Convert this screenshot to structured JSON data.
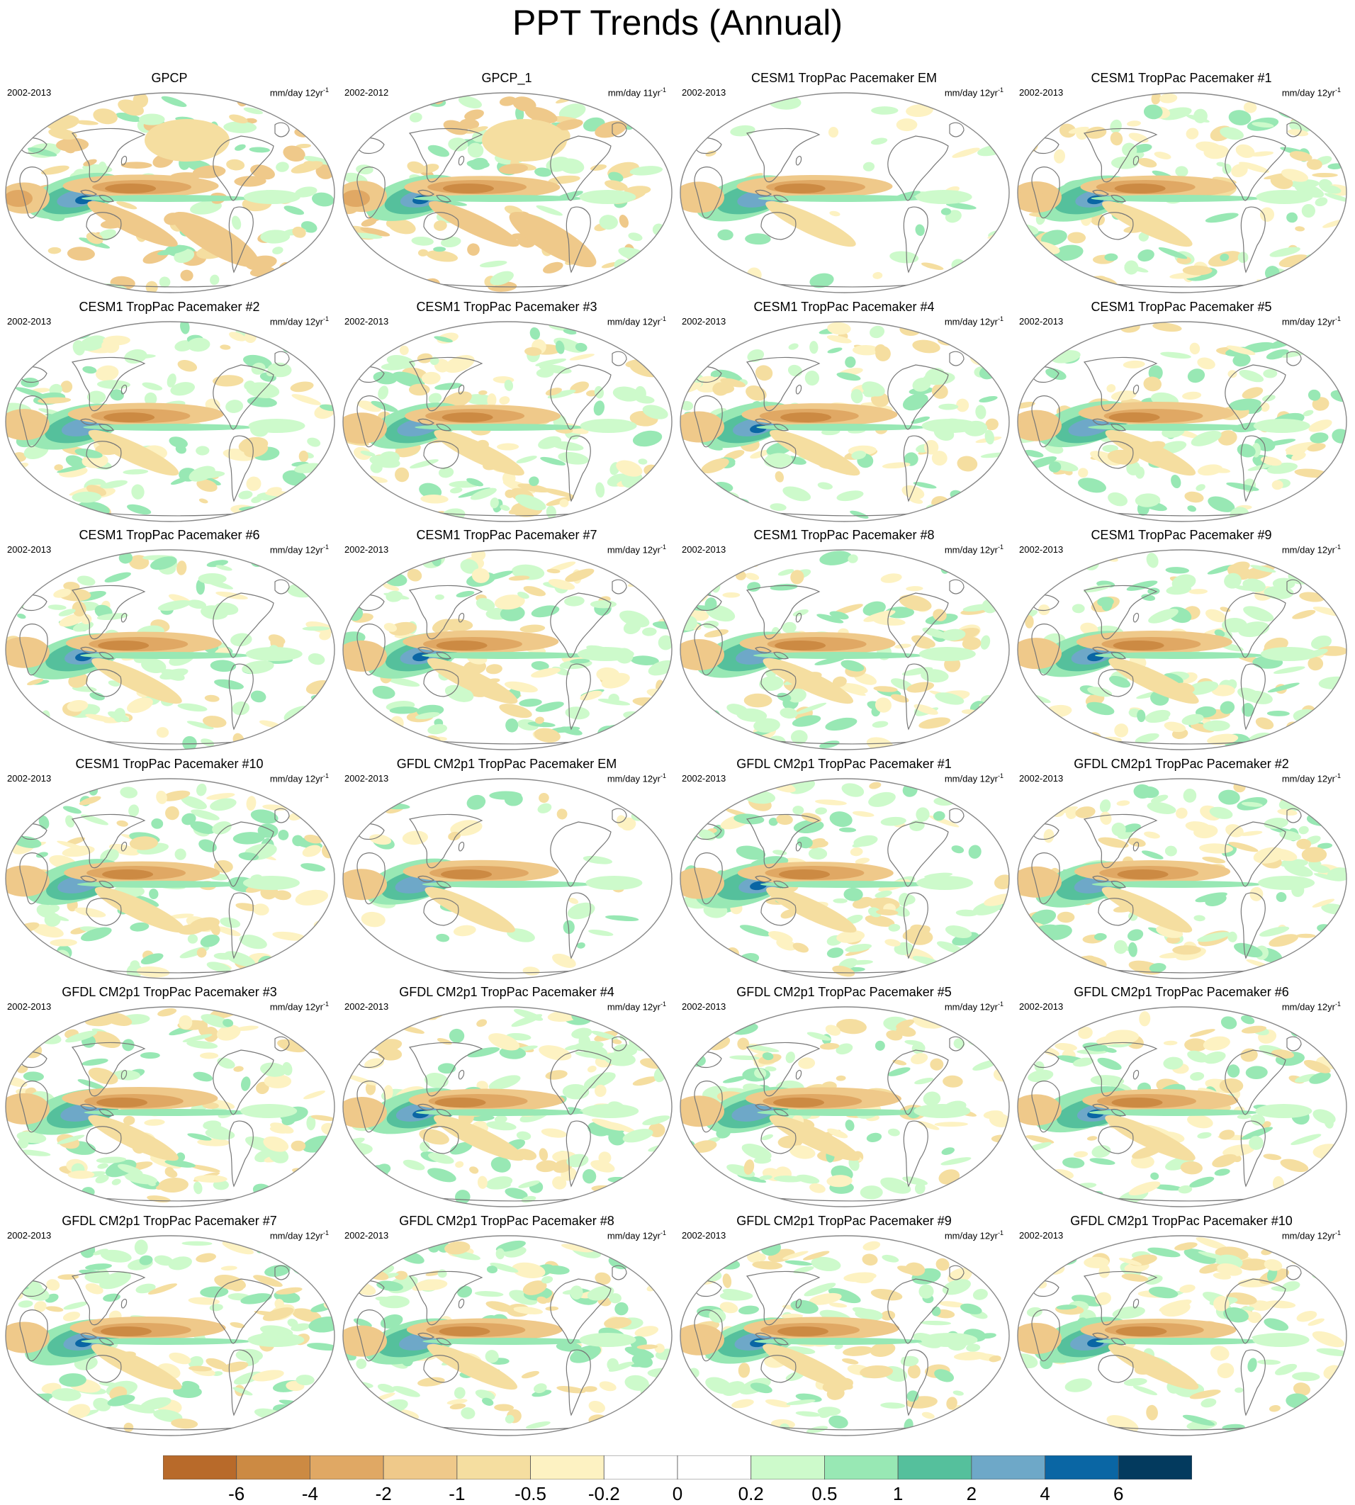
{
  "title": "PPT Trends (Annual)",
  "panels": [
    {
      "title": "GPCP",
      "period": "2002-2013",
      "units": "mm/day 12yr",
      "exp": "-1",
      "style": "obs"
    },
    {
      "title": "GPCP_1",
      "period": "2002-2012",
      "units": "mm/day 11yr",
      "exp": "-1",
      "style": "obs"
    },
    {
      "title": "CESM1 TropPac Pacemaker EM",
      "period": "2002-2013",
      "units": "mm/day 12yr",
      "exp": "-1",
      "style": "cesm-em"
    },
    {
      "title": "CESM1 TropPac Pacemaker #1",
      "period": "2002-2013",
      "units": "mm/day 12yr",
      "exp": "-1",
      "style": "cesm"
    },
    {
      "title": "CESM1 TropPac Pacemaker #2",
      "period": "2002-2013",
      "units": "mm/day 12yr",
      "exp": "-1",
      "style": "cesm"
    },
    {
      "title": "CESM1 TropPac Pacemaker #3",
      "period": "2002-2013",
      "units": "mm/day 12yr",
      "exp": "-1",
      "style": "cesm"
    },
    {
      "title": "CESM1 TropPac Pacemaker #4",
      "period": "2002-2013",
      "units": "mm/day 12yr",
      "exp": "-1",
      "style": "cesm"
    },
    {
      "title": "CESM1 TropPac Pacemaker #5",
      "period": "2002-2013",
      "units": "mm/day 12yr",
      "exp": "-1",
      "style": "cesm"
    },
    {
      "title": "CESM1 TropPac Pacemaker #6",
      "period": "2002-2013",
      "units": "mm/day 12yr",
      "exp": "-1",
      "style": "cesm"
    },
    {
      "title": "CESM1 TropPac Pacemaker #7",
      "period": "2002-2013",
      "units": "mm/day 12yr",
      "exp": "-1",
      "style": "cesm"
    },
    {
      "title": "CESM1 TropPac Pacemaker #8",
      "period": "2002-2013",
      "units": "mm/day 12yr",
      "exp": "-1",
      "style": "cesm"
    },
    {
      "title": "CESM1 TropPac Pacemaker #9",
      "period": "2002-2013",
      "units": "mm/day 12yr",
      "exp": "-1",
      "style": "cesm"
    },
    {
      "title": "CESM1 TropPac Pacemaker #10",
      "period": "2002-2013",
      "units": "mm/day 12yr",
      "exp": "-1",
      "style": "cesm"
    },
    {
      "title": "GFDL CM2p1 TropPac Pacemaker EM",
      "period": "2002-2013",
      "units": "mm/day 12yr",
      "exp": "-1",
      "style": "gfdl-em"
    },
    {
      "title": "GFDL CM2p1 TropPac Pacemaker #1",
      "period": "2002-2013",
      "units": "mm/day 12yr",
      "exp": "-1",
      "style": "gfdl"
    },
    {
      "title": "GFDL CM2p1 TropPac Pacemaker #2",
      "period": "2002-2013",
      "units": "mm/day 12yr",
      "exp": "-1",
      "style": "gfdl"
    },
    {
      "title": "GFDL CM2p1 TropPac Pacemaker #3",
      "period": "2002-2013",
      "units": "mm/day 12yr",
      "exp": "-1",
      "style": "gfdl"
    },
    {
      "title": "GFDL CM2p1 TropPac Pacemaker #4",
      "period": "2002-2013",
      "units": "mm/day 12yr",
      "exp": "-1",
      "style": "gfdl"
    },
    {
      "title": "GFDL CM2p1 TropPac Pacemaker #5",
      "period": "2002-2013",
      "units": "mm/day 12yr",
      "exp": "-1",
      "style": "gfdl"
    },
    {
      "title": "GFDL CM2p1 TropPac Pacemaker #6",
      "period": "2002-2013",
      "units": "mm/day 12yr",
      "exp": "-1",
      "style": "gfdl"
    },
    {
      "title": "GFDL CM2p1 TropPac Pacemaker #7",
      "period": "2002-2013",
      "units": "mm/day 12yr",
      "exp": "-1",
      "style": "gfdl"
    },
    {
      "title": "GFDL CM2p1 TropPac Pacemaker #8",
      "period": "2002-2013",
      "units": "mm/day 12yr",
      "exp": "-1",
      "style": "gfdl"
    },
    {
      "title": "GFDL CM2p1 TropPac Pacemaker #9",
      "period": "2002-2013",
      "units": "mm/day 12yr",
      "exp": "-1",
      "style": "gfdl"
    },
    {
      "title": "GFDL CM2p1 TropPac Pacemaker #10",
      "period": "2002-2013",
      "units": "mm/day 12yr",
      "exp": "-1",
      "style": "gfdl"
    }
  ],
  "colorbar": {
    "colors": [
      "#b86a2a",
      "#cc8a43",
      "#e0a864",
      "#efc98a",
      "#f5dea0",
      "#fdf2c2",
      "#ffffff",
      "#ffffff",
      "#cdfacb",
      "#98e8b4",
      "#55c09c",
      "#6ea8c8",
      "#0a66a4",
      "#033a5e"
    ],
    "labels": [
      "-6",
      "-4",
      "-2",
      "-1",
      "-0.5",
      "-0.2",
      "0",
      "0.2",
      "0.5",
      "1",
      "2",
      "4",
      "6"
    ]
  },
  "colors": {
    "coastline": "#777777",
    "map_border": "#888888"
  }
}
